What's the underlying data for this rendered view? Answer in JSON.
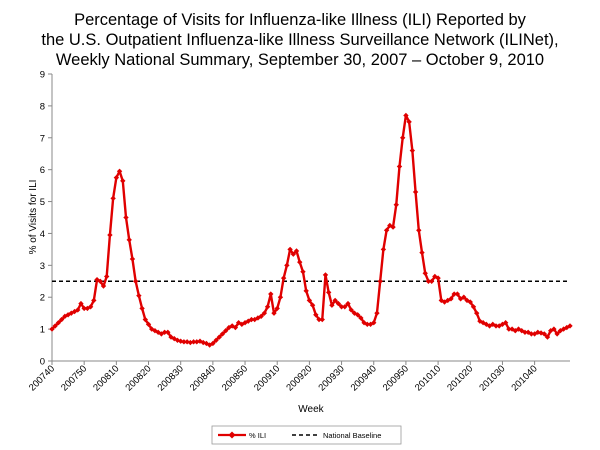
{
  "chart_data": {
    "type": "line",
    "title_lines": [
      "Percentage of Visits for Influenza-like Illness (ILI) Reported by",
      "the U.S. Outpatient Influenza-like Illness Surveillance Network (ILINet),",
      "Weekly National Summary, September 30, 2007 – October 9, 2010"
    ],
    "xlabel": "Week",
    "ylabel": "% of Visits for ILI",
    "ylim": [
      0,
      9
    ],
    "yticks": [
      "0",
      "1",
      "2",
      "3",
      "4",
      "5",
      "6",
      "7",
      "8",
      "9"
    ],
    "x_tick_labels": [
      "200740",
      "200750",
      "200810",
      "200820",
      "200830",
      "200840",
      "200850",
      "200910",
      "200920",
      "200930",
      "200940",
      "200950",
      "201010",
      "201020",
      "201030",
      "201040"
    ],
    "grid": false,
    "legend_position": "bottom-center",
    "series": [
      {
        "name": "% ILI",
        "color": "#e00000",
        "marker": "diamond",
        "values": [
          1.0,
          1.1,
          1.2,
          1.3,
          1.4,
          1.45,
          1.5,
          1.55,
          1.6,
          1.8,
          1.65,
          1.65,
          1.7,
          1.9,
          2.55,
          2.5,
          2.35,
          2.65,
          3.95,
          5.1,
          5.75,
          5.95,
          5.65,
          4.5,
          3.8,
          3.2,
          2.5,
          2.05,
          1.65,
          1.3,
          1.15,
          1.0,
          0.95,
          0.9,
          0.85,
          0.9,
          0.9,
          0.75,
          0.7,
          0.65,
          0.62,
          0.6,
          0.6,
          0.58,
          0.6,
          0.6,
          0.62,
          0.58,
          0.55,
          0.5,
          0.55,
          0.65,
          0.75,
          0.85,
          0.95,
          1.05,
          1.1,
          1.05,
          1.2,
          1.15,
          1.2,
          1.25,
          1.3,
          1.3,
          1.35,
          1.4,
          1.5,
          1.7,
          2.1,
          1.5,
          1.65,
          2.0,
          2.6,
          3.0,
          3.5,
          3.35,
          3.45,
          3.1,
          2.8,
          2.2,
          1.9,
          1.75,
          1.45,
          1.3,
          1.3,
          2.7,
          2.15,
          1.75,
          1.9,
          1.8,
          1.7,
          1.7,
          1.8,
          1.6,
          1.5,
          1.45,
          1.35,
          1.2,
          1.15,
          1.15,
          1.2,
          1.5,
          2.5,
          3.5,
          4.1,
          4.25,
          4.2,
          4.9,
          6.1,
          7.0,
          7.7,
          7.5,
          6.6,
          5.3,
          4.1,
          3.4,
          2.75,
          2.5,
          2.5,
          2.65,
          2.6,
          1.9,
          1.85,
          1.9,
          1.95,
          2.1,
          2.1,
          1.95,
          2.0,
          1.9,
          1.85,
          1.7,
          1.5,
          1.25,
          1.2,
          1.15,
          1.1,
          1.15,
          1.1,
          1.1,
          1.15,
          1.2,
          1.0,
          1.0,
          0.95,
          1.0,
          0.95,
          0.9,
          0.9,
          0.85,
          0.85,
          0.9,
          0.88,
          0.85,
          0.75,
          0.95,
          1.0,
          0.85,
          0.95,
          1.0,
          1.05,
          1.1
        ]
      },
      {
        "name": "National Baseline",
        "color": "#000000",
        "style": "dashed",
        "value": 2.5
      }
    ]
  }
}
